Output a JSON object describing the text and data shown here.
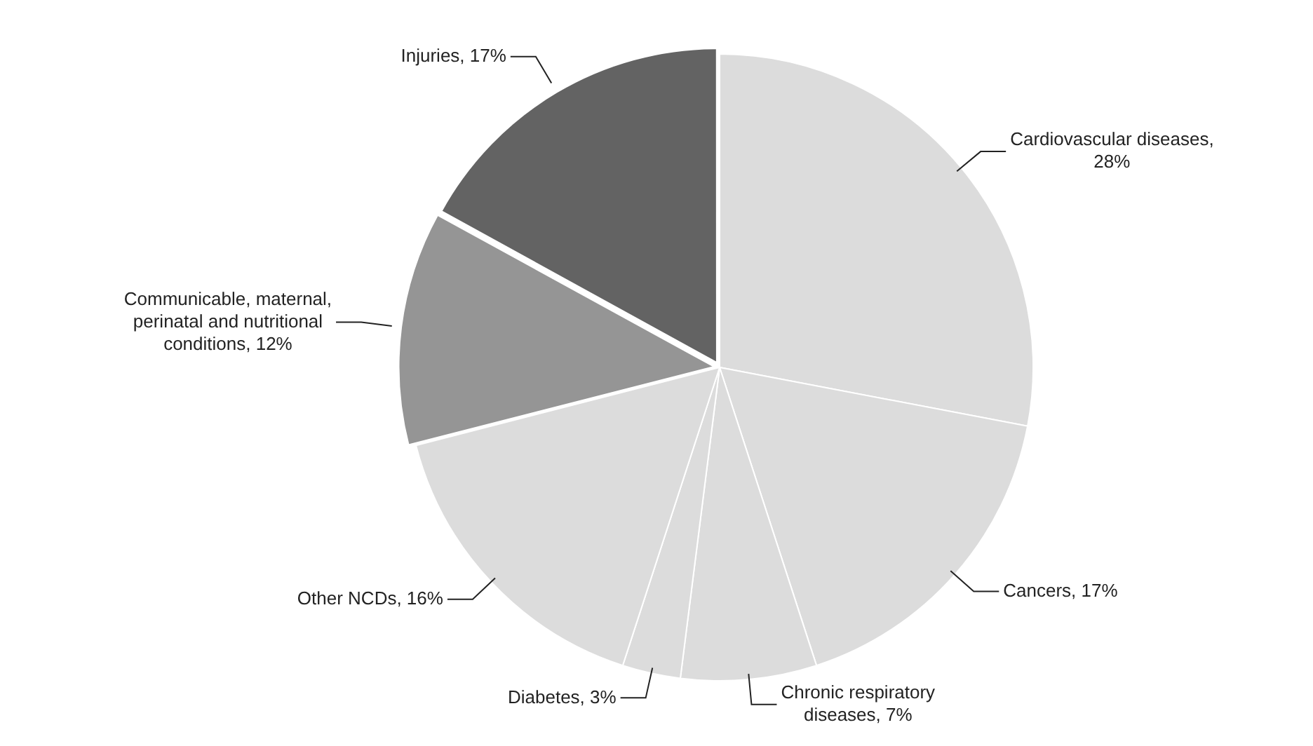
{
  "chart_data": {
    "type": "pie",
    "categories": [
      "Cardiovascular diseases, 28%",
      "Cancers, 17%",
      "Chronic respiratory diseases, 7%",
      "Diabetes, 3%",
      "Other NCDs, 16%",
      "Communicable, maternal, perinatal and nutritional conditions, 12%",
      "Injuries, 17%"
    ],
    "values": [
      28,
      17,
      7,
      3,
      16,
      12,
      17
    ],
    "colors": [
      "#dcdcdc",
      "#dcdcdc",
      "#dcdcdc",
      "#dcdcdc",
      "#dcdcdc",
      "#959595",
      "#636363"
    ],
    "legend": false
  }
}
